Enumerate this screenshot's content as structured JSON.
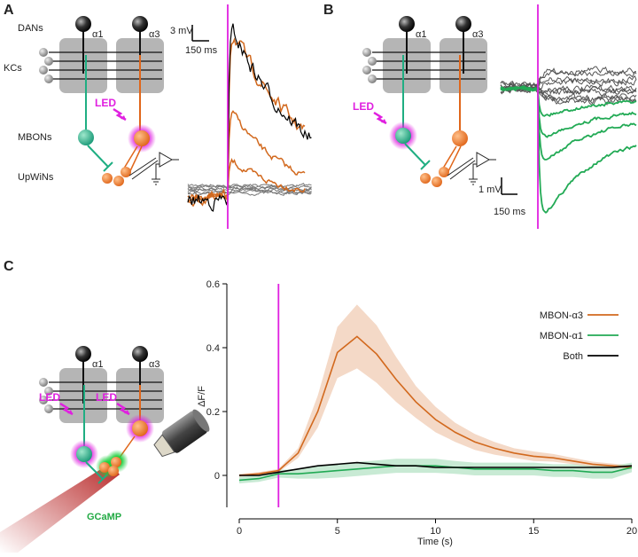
{
  "panel_a": {
    "label": "A",
    "dans": "DANs",
    "alpha1": "α1",
    "alpha3": "α3",
    "kcs": "KCs",
    "led": "LED",
    "mbons": "MBONs",
    "upwins": "UpWiNs",
    "scale_v": "3 mV",
    "scale_t": "150 ms"
  },
  "panel_b": {
    "label": "B",
    "alpha1": "α1",
    "alpha3": "α3",
    "led": "LED",
    "scale_v": "1 mV",
    "scale_t": "150 ms"
  },
  "panel_c": {
    "label": "C",
    "alpha1": "α1",
    "alpha3": "α3",
    "led_1": "LED",
    "led_2": "LED",
    "gcamp": "GCaMP"
  },
  "chart_data": {
    "type": "line",
    "xlabel": "Time (s)",
    "ylabel": "ΔF/F",
    "x": [
      0,
      1,
      2,
      3,
      4,
      5,
      6,
      7,
      8,
      9,
      10,
      11,
      12,
      13,
      14,
      15,
      16,
      17,
      18,
      19,
      20
    ],
    "series": [
      {
        "name": "MBON-α3",
        "color": "#d2691e",
        "values": [
          0,
          0.005,
          0.015,
          0.07,
          0.2,
          0.385,
          0.435,
          0.38,
          0.3,
          0.23,
          0.175,
          0.135,
          0.105,
          0.085,
          0.07,
          0.06,
          0.055,
          0.045,
          0.035,
          0.03,
          0.025
        ],
        "error": [
          0.005,
          0.005,
          0.005,
          0.015,
          0.05,
          0.08,
          0.1,
          0.09,
          0.07,
          0.05,
          0.04,
          0.03,
          0.025,
          0.02,
          0.015,
          0.015,
          0.012,
          0.01,
          0.008,
          0.007,
          0.006
        ]
      },
      {
        "name": "MBON-α1",
        "color": "#22aa55",
        "values": [
          -0.015,
          -0.01,
          0.005,
          0.005,
          0.01,
          0.015,
          0.02,
          0.025,
          0.03,
          0.03,
          0.03,
          0.025,
          0.02,
          0.02,
          0.02,
          0.02,
          0.015,
          0.015,
          0.01,
          0.01,
          0.025
        ],
        "error": [
          0.01,
          0.01,
          0.012,
          0.015,
          0.02,
          0.022,
          0.022,
          0.022,
          0.022,
          0.022,
          0.022,
          0.02,
          0.02,
          0.02,
          0.02,
          0.02,
          0.02,
          0.02,
          0.02,
          0.02,
          0.015
        ]
      },
      {
        "name": "Both",
        "color": "#000000",
        "values": [
          0,
          0,
          0.01,
          0.02,
          0.03,
          0.035,
          0.04,
          0.035,
          0.03,
          0.03,
          0.025,
          0.025,
          0.025,
          0.025,
          0.025,
          0.025,
          0.025,
          0.025,
          0.025,
          0.025,
          0.03
        ]
      }
    ],
    "stimulus_x": 2,
    "stimulus_color": "#e020e0",
    "xlim": [
      0,
      20
    ],
    "xticks": [
      0,
      5,
      10,
      15,
      20
    ],
    "ylim": [
      -0.1,
      0.6
    ],
    "yticks": [
      0,
      0.2,
      0.4,
      0.6
    ]
  }
}
